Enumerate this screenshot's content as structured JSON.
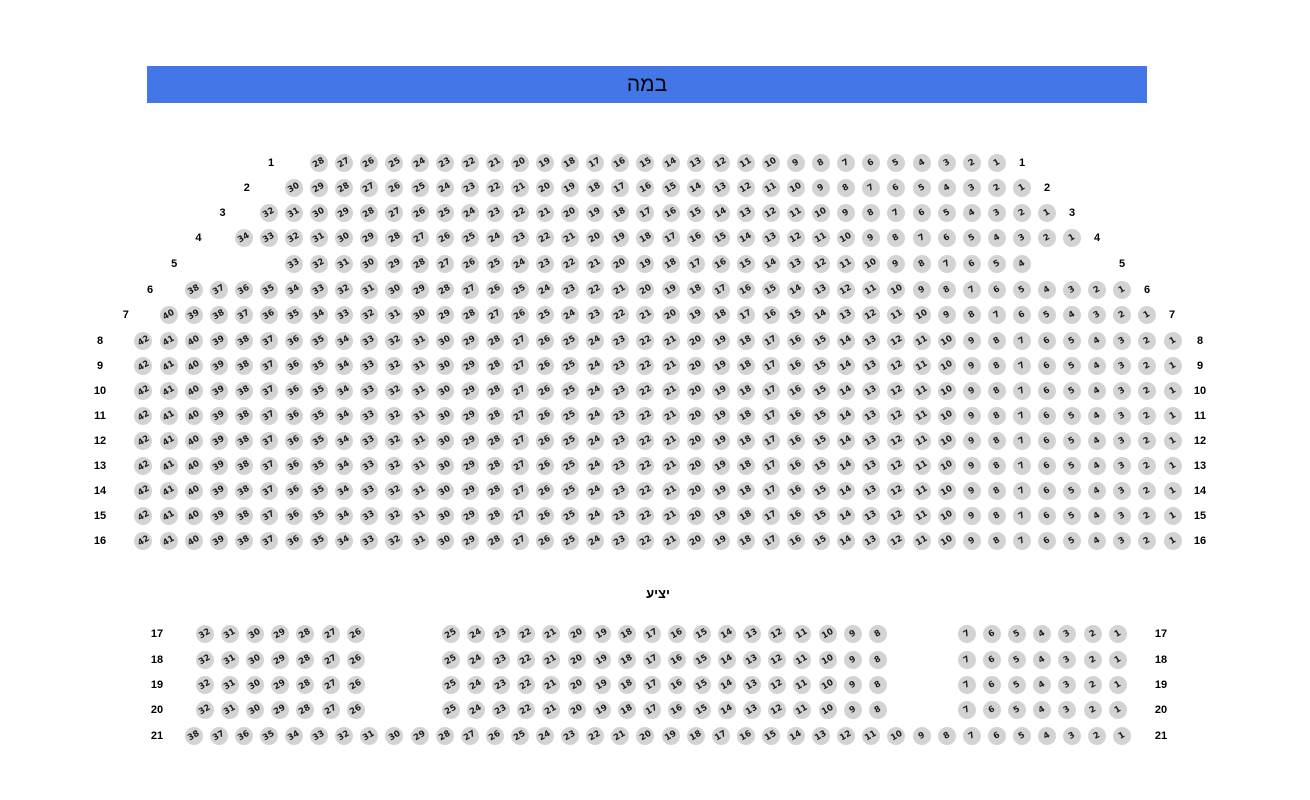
{
  "stage": {
    "label": "במה"
  },
  "balcony": {
    "label": "יציע"
  },
  "colors": {
    "stage_bg": "#4377e8",
    "seat_fill": "#d3d3d3",
    "seat_text": "#1c1c1c"
  },
  "rows": [
    {
      "label": "1",
      "section": "main",
      "blocks": [
        [
          28,
          27,
          26,
          25,
          24,
          23,
          22,
          21,
          20,
          19,
          18,
          17,
          16,
          15,
          14,
          13,
          12,
          11,
          10,
          9,
          8,
          7,
          6,
          5,
          4,
          3,
          2,
          1
        ]
      ]
    },
    {
      "label": "2",
      "section": "main",
      "blocks": [
        [
          30,
          29,
          28,
          27,
          26,
          25,
          24,
          23,
          22,
          21,
          20,
          19,
          18,
          17,
          16,
          15,
          14,
          13,
          12,
          11,
          10,
          9,
          8,
          7,
          6,
          5,
          4,
          3,
          2,
          1
        ]
      ]
    },
    {
      "label": "3",
      "section": "main",
      "blocks": [
        [
          32,
          31,
          30,
          29,
          28,
          27,
          26,
          25,
          24,
          23,
          22,
          21,
          20,
          19,
          18,
          17,
          16,
          15,
          14,
          13,
          12,
          11,
          10,
          9,
          8,
          7,
          6,
          5,
          4,
          3,
          2,
          1
        ]
      ]
    },
    {
      "label": "4",
      "section": "main",
      "blocks": [
        [
          34,
          33,
          32,
          31,
          30,
          29,
          28,
          27,
          26,
          25,
          24,
          23,
          22,
          21,
          20,
          19,
          18,
          17,
          16,
          15,
          14,
          13,
          12,
          11,
          10,
          9,
          8,
          7,
          6,
          5,
          4,
          3,
          2,
          1
        ]
      ]
    },
    {
      "label": "5",
      "section": "main",
      "blocks": [
        [
          33,
          32,
          31,
          30,
          29,
          28,
          27,
          26,
          25,
          24,
          23,
          22,
          21,
          20,
          19,
          18,
          17,
          16,
          15,
          14,
          13,
          12,
          11,
          10,
          9,
          8,
          7,
          6,
          5,
          4
        ]
      ]
    },
    {
      "label": "6",
      "section": "main",
      "blocks": [
        [
          38,
          37,
          36,
          35,
          34,
          33,
          32,
          31,
          30,
          29,
          28,
          27,
          26,
          25,
          24,
          23,
          22,
          21,
          20,
          19,
          18,
          17,
          16,
          15,
          14,
          13,
          12,
          11,
          10,
          9,
          8,
          7,
          6,
          5,
          4,
          3,
          2,
          1
        ]
      ]
    },
    {
      "label": "7",
      "section": "main",
      "blocks": [
        [
          40,
          39,
          38,
          37,
          36,
          35,
          34,
          33,
          32,
          31,
          30,
          29,
          28,
          27,
          26,
          25,
          24,
          23,
          22,
          21,
          20,
          19,
          18,
          17,
          16,
          15,
          14,
          13,
          12,
          11,
          10,
          9,
          8,
          7,
          6,
          5,
          4,
          3,
          2,
          1
        ]
      ]
    },
    {
      "label": "8",
      "section": "main",
      "blocks": [
        [
          42,
          41,
          40,
          39,
          38,
          37,
          36,
          35,
          34,
          33,
          32,
          31,
          30,
          29,
          28,
          27,
          26,
          25,
          24,
          23,
          22,
          21,
          20,
          19,
          18,
          17,
          16,
          15,
          14,
          13,
          12,
          11,
          10,
          9,
          8,
          7,
          6,
          5,
          4,
          3,
          2,
          1
        ]
      ]
    },
    {
      "label": "9",
      "section": "main",
      "blocks": [
        [
          42,
          41,
          40,
          39,
          38,
          37,
          36,
          35,
          34,
          33,
          32,
          31,
          30,
          29,
          28,
          27,
          26,
          25,
          24,
          23,
          22,
          21,
          20,
          19,
          18,
          17,
          16,
          15,
          14,
          13,
          12,
          11,
          10,
          9,
          8,
          7,
          6,
          5,
          4,
          3,
          2,
          1
        ]
      ]
    },
    {
      "label": "10",
      "section": "main",
      "blocks": [
        [
          42,
          41,
          40,
          39,
          38,
          37,
          36,
          35,
          34,
          33,
          32,
          31,
          30,
          29,
          28,
          27,
          26,
          25,
          24,
          23,
          22,
          21,
          20,
          19,
          18,
          17,
          16,
          15,
          14,
          13,
          12,
          11,
          10,
          9,
          8,
          7,
          6,
          5,
          4,
          3,
          2,
          1
        ]
      ]
    },
    {
      "label": "11",
      "section": "main",
      "blocks": [
        [
          42,
          41,
          40,
          39,
          38,
          37,
          36,
          35,
          34,
          33,
          32,
          31,
          30,
          29,
          28,
          27,
          26,
          25,
          24,
          23,
          22,
          21,
          20,
          19,
          18,
          17,
          16,
          15,
          14,
          13,
          12,
          11,
          10,
          9,
          8,
          7,
          6,
          5,
          4,
          3,
          2,
          1
        ]
      ]
    },
    {
      "label": "12",
      "section": "main",
      "blocks": [
        [
          42,
          41,
          40,
          39,
          38,
          37,
          36,
          35,
          34,
          33,
          32,
          31,
          30,
          29,
          28,
          27,
          26,
          25,
          24,
          23,
          22,
          21,
          20,
          19,
          18,
          17,
          16,
          15,
          14,
          13,
          12,
          11,
          10,
          9,
          8,
          7,
          6,
          5,
          4,
          3,
          2,
          1
        ]
      ]
    },
    {
      "label": "13",
      "section": "main",
      "blocks": [
        [
          42,
          41,
          40,
          39,
          38,
          37,
          36,
          35,
          34,
          33,
          32,
          31,
          30,
          29,
          28,
          27,
          26,
          25,
          24,
          23,
          22,
          21,
          20,
          19,
          18,
          17,
          16,
          15,
          14,
          13,
          12,
          11,
          10,
          9,
          8,
          7,
          6,
          5,
          4,
          3,
          2,
          1
        ]
      ]
    },
    {
      "label": "14",
      "section": "main",
      "blocks": [
        [
          42,
          41,
          40,
          39,
          38,
          37,
          36,
          35,
          34,
          33,
          32,
          31,
          30,
          29,
          28,
          27,
          26,
          25,
          24,
          23,
          22,
          21,
          20,
          19,
          18,
          17,
          16,
          15,
          14,
          13,
          12,
          11,
          10,
          9,
          8,
          7,
          6,
          5,
          4,
          3,
          2,
          1
        ]
      ]
    },
    {
      "label": "15",
      "section": "main",
      "blocks": [
        [
          42,
          41,
          40,
          39,
          38,
          37,
          36,
          35,
          34,
          33,
          32,
          31,
          30,
          29,
          28,
          27,
          26,
          25,
          24,
          23,
          22,
          21,
          20,
          19,
          18,
          17,
          16,
          15,
          14,
          13,
          12,
          11,
          10,
          9,
          8,
          7,
          6,
          5,
          4,
          3,
          2,
          1
        ]
      ]
    },
    {
      "label": "16",
      "section": "main",
      "blocks": [
        [
          42,
          41,
          40,
          39,
          38,
          37,
          36,
          35,
          34,
          33,
          32,
          31,
          30,
          29,
          28,
          27,
          26,
          25,
          24,
          23,
          22,
          21,
          20,
          19,
          18,
          17,
          16,
          15,
          14,
          13,
          12,
          11,
          10,
          9,
          8,
          7,
          6,
          5,
          4,
          3,
          2,
          1
        ]
      ]
    },
    {
      "label": "17",
      "section": "balcony",
      "blocks": [
        [
          32,
          31,
          30,
          29,
          28,
          27,
          26
        ],
        [
          25,
          24,
          23,
          22,
          21,
          20,
          19,
          18,
          17,
          16,
          15,
          14,
          13,
          12,
          11,
          10,
          9,
          8
        ],
        [
          7,
          6,
          5,
          4,
          3,
          2,
          1
        ]
      ]
    },
    {
      "label": "18",
      "section": "balcony",
      "blocks": [
        [
          32,
          31,
          30,
          29,
          28,
          27,
          26
        ],
        [
          25,
          24,
          23,
          22,
          21,
          20,
          19,
          18,
          17,
          16,
          15,
          14,
          13,
          12,
          11,
          10,
          9,
          8
        ],
        [
          7,
          6,
          5,
          4,
          3,
          2,
          1
        ]
      ]
    },
    {
      "label": "19",
      "section": "balcony",
      "blocks": [
        [
          32,
          31,
          30,
          29,
          28,
          27,
          26
        ],
        [
          25,
          24,
          23,
          22,
          21,
          20,
          19,
          18,
          17,
          16,
          15,
          14,
          13,
          12,
          11,
          10,
          9,
          8
        ],
        [
          7,
          6,
          5,
          4,
          3,
          2,
          1
        ]
      ]
    },
    {
      "label": "20",
      "section": "balcony",
      "blocks": [
        [
          32,
          31,
          30,
          29,
          28,
          27,
          26
        ],
        [
          25,
          24,
          23,
          22,
          21,
          20,
          19,
          18,
          17,
          16,
          15,
          14,
          13,
          12,
          11,
          10,
          9,
          8
        ],
        [
          7,
          6,
          5,
          4,
          3,
          2,
          1
        ]
      ]
    },
    {
      "label": "21",
      "section": "balcony",
      "blocks": [
        [
          38,
          37,
          36,
          35,
          34,
          33,
          32,
          31,
          30,
          29,
          28,
          27,
          26,
          25,
          24,
          23,
          22,
          21,
          20,
          19,
          18,
          17,
          16,
          15,
          14,
          13,
          12,
          11,
          10,
          9,
          8,
          7,
          6,
          5,
          4,
          3,
          2,
          1
        ]
      ]
    }
  ]
}
